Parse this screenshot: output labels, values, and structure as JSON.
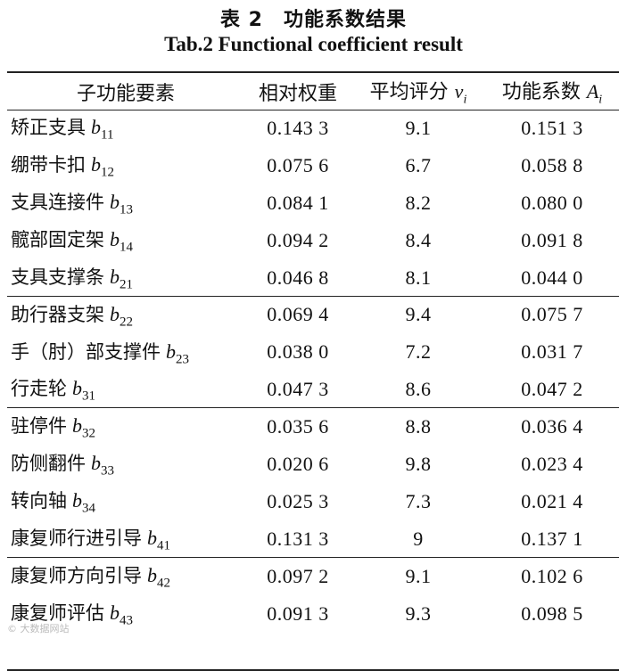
{
  "title_cn": "表 2　功能系数结果",
  "title_en": "Tab.2 Functional coefficient result",
  "headers": {
    "element": "子功能要素",
    "weight": "相对权重",
    "score": "平均评分",
    "score_var": "v",
    "score_sub": "i",
    "coef": "功能系数",
    "coef_var": "A",
    "coef_sub": "i"
  },
  "groups": [
    [
      {
        "name": "矫正支具",
        "code": "b",
        "sub": "11",
        "weight": "0.143 3",
        "score": "9.1",
        "coef": "0.151 3"
      },
      {
        "name": "绷带卡扣",
        "code": "b",
        "sub": "12",
        "weight": "0.075 6",
        "score": "6.7",
        "coef": "0.058 8"
      },
      {
        "name": "支具连接件",
        "code": "b",
        "sub": "13",
        "weight": "0.084 1",
        "score": "8.2",
        "coef": "0.080 0"
      },
      {
        "name": "髋部固定架",
        "code": "b",
        "sub": "14",
        "weight": "0.094 2",
        "score": "8.4",
        "coef": "0.091 8"
      }
    ],
    [
      {
        "name": "支具支撑条",
        "code": "b",
        "sub": "21",
        "weight": "0.046 8",
        "score": "8.1",
        "coef": "0.044 0"
      },
      {
        "name": "助行器支架",
        "code": "b",
        "sub": "22",
        "weight": "0.069 4",
        "score": "9.4",
        "coef": "0.075 7"
      },
      {
        "name": "手（肘）部支撑件",
        "code": "b",
        "sub": "23",
        "weight": "0.038 0",
        "score": "7.2",
        "coef": "0.031 7"
      }
    ],
    [
      {
        "name": "行走轮",
        "code": "b",
        "sub": "31",
        "weight": "0.047 3",
        "score": "8.6",
        "coef": "0.047 2"
      },
      {
        "name": "驻停件",
        "code": "b",
        "sub": "32",
        "weight": "0.035 6",
        "score": "8.8",
        "coef": "0.036 4"
      },
      {
        "name": "防侧翻件",
        "code": "b",
        "sub": "33",
        "weight": "0.020 6",
        "score": "9.8",
        "coef": "0.023 4"
      },
      {
        "name": "转向轴",
        "code": "b",
        "sub": "34",
        "weight": "0.025 3",
        "score": "7.3",
        "coef": "0.021 4"
      }
    ],
    [
      {
        "name": "康复师行进引导",
        "code": "b",
        "sub": "41",
        "weight": "0.131 3",
        "score": "9",
        "coef": "0.137 1"
      },
      {
        "name": "康复师方向引导",
        "code": "b",
        "sub": "42",
        "weight": "0.097 2",
        "score": "9.1",
        "coef": "0.102 6"
      },
      {
        "name": "康复师评估",
        "code": "b",
        "sub": "43",
        "weight": "0.091 3",
        "score": "9.3",
        "coef": "0.098 5"
      }
    ]
  ],
  "watermark": "© 大数据网站"
}
